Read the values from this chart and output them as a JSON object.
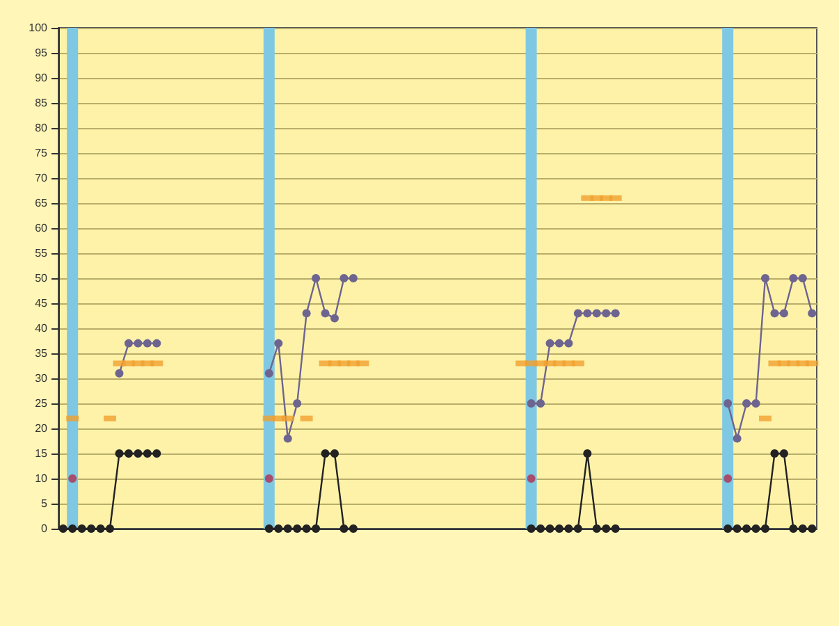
{
  "chart_data": {
    "type": "line",
    "categories": [
      null,
      null,
      null,
      null,
      null,
      null,
      null,
      null,
      null,
      null,
      null,
      null,
      null,
      null,
      null,
      null,
      null,
      null,
      null,
      null,
      null,
      null,
      null,
      null,
      null,
      null,
      null,
      null,
      null,
      null,
      null,
      null,
      null,
      null,
      null,
      null,
      null,
      null,
      null,
      null,
      null,
      null,
      null,
      null,
      null,
      null,
      null,
      null,
      null,
      null,
      null,
      null,
      null,
      null,
      null,
      null,
      null,
      null,
      null,
      null,
      null,
      null,
      null,
      null,
      null,
      null,
      null,
      null,
      null,
      null,
      null,
      null,
      null,
      null,
      null,
      null,
      null,
      null,
      null,
      null,
      null
    ],
    "ylim": [
      0,
      100
    ],
    "yticks": [
      0,
      5,
      10,
      15,
      20,
      25,
      30,
      35,
      40,
      45,
      50,
      55,
      60,
      65,
      70,
      75,
      80,
      85,
      90,
      95,
      100
    ],
    "grid": "y",
    "series": [
      {
        "type": "bar",
        "color": "#7ec8e3",
        "values": [
          null,
          100,
          null,
          null,
          null,
          null,
          null,
          null,
          null,
          null,
          null,
          null,
          null,
          null,
          null,
          null,
          null,
          null,
          null,
          null,
          null,
          null,
          100,
          null,
          null,
          null,
          null,
          null,
          null,
          null,
          null,
          null,
          null,
          null,
          null,
          null,
          null,
          null,
          null,
          null,
          null,
          null,
          null,
          null,
          null,
          null,
          null,
          null,
          null,
          null,
          100,
          null,
          null,
          null,
          null,
          null,
          null,
          null,
          null,
          null,
          null,
          null,
          null,
          null,
          null,
          null,
          null,
          null,
          null,
          null,
          null,
          100,
          null,
          null,
          null,
          null,
          null,
          null,
          null,
          null,
          null
        ]
      },
      {
        "color": "#222222",
        "marker": "circle",
        "values": [
          0,
          0,
          0,
          0,
          0,
          0,
          15,
          15,
          15,
          15,
          15,
          null,
          null,
          null,
          null,
          null,
          null,
          null,
          null,
          null,
          null,
          null,
          0,
          0,
          0,
          0,
          0,
          0,
          15,
          15,
          0,
          0,
          null,
          null,
          null,
          null,
          null,
          null,
          null,
          null,
          null,
          null,
          null,
          null,
          null,
          null,
          null,
          null,
          null,
          null,
          0,
          0,
          0,
          0,
          0,
          0,
          15,
          0,
          0,
          0,
          null,
          null,
          null,
          null,
          null,
          null,
          null,
          null,
          null,
          null,
          null,
          0,
          0,
          0,
          0,
          0,
          15,
          15,
          0,
          0,
          0
        ]
      },
      {
        "color": "#6e6490",
        "marker": "circle",
        "values": [
          null,
          null,
          null,
          null,
          null,
          null,
          31,
          37,
          37,
          37,
          37,
          null,
          null,
          null,
          null,
          null,
          null,
          null,
          null,
          null,
          null,
          null,
          31,
          37,
          18,
          25,
          43,
          50,
          43,
          42,
          50,
          50,
          null,
          null,
          null,
          null,
          null,
          null,
          null,
          null,
          null,
          null,
          null,
          null,
          null,
          null,
          null,
          null,
          null,
          null,
          25,
          25,
          37,
          37,
          37,
          43,
          43,
          43,
          43,
          43,
          null,
          null,
          null,
          null,
          null,
          null,
          null,
          null,
          null,
          null,
          null,
          25,
          18,
          25,
          25,
          50,
          43,
          43,
          50,
          50,
          43
        ]
      },
      {
        "type": "scatter",
        "color": "#f0a030",
        "marker": "square",
        "values": [
          null,
          22,
          null,
          null,
          null,
          22,
          33,
          33,
          33,
          33,
          33,
          null,
          null,
          null,
          null,
          null,
          null,
          null,
          null,
          null,
          null,
          null,
          22,
          22,
          22,
          null,
          22,
          null,
          33,
          33,
          33,
          33,
          33,
          null,
          null,
          null,
          null,
          null,
          null,
          null,
          null,
          null,
          null,
          null,
          null,
          null,
          null,
          null,
          null,
          33,
          33,
          33,
          33,
          33,
          33,
          33,
          66,
          66,
          66,
          66,
          null,
          null,
          null,
          null,
          null,
          null,
          null,
          null,
          null,
          null,
          null,
          null,
          null,
          null,
          null,
          22,
          33,
          33,
          33,
          33,
          33
        ]
      },
      {
        "type": "scatter",
        "color": "#b03050",
        "marker": "circle",
        "values": [
          null,
          10,
          null,
          null,
          null,
          null,
          null,
          null,
          null,
          null,
          null,
          null,
          null,
          null,
          null,
          null,
          null,
          null,
          null,
          null,
          null,
          null,
          10,
          null,
          null,
          null,
          null,
          null,
          null,
          null,
          null,
          null,
          null,
          null,
          null,
          null,
          null,
          null,
          null,
          null,
          null,
          null,
          null,
          null,
          null,
          null,
          null,
          null,
          null,
          null,
          10,
          null,
          null,
          null,
          null,
          null,
          null,
          null,
          null,
          null,
          null,
          null,
          null,
          null,
          null,
          null,
          null,
          null,
          null,
          null,
          null,
          10,
          null,
          null,
          null,
          null,
          null,
          null,
          null,
          null,
          null
        ]
      }
    ]
  }
}
